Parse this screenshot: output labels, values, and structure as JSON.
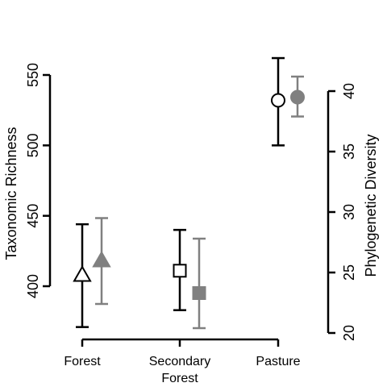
{
  "chart_data": {
    "type": "scatter",
    "categories": [
      "Forest",
      "Secondary Forest",
      "Pasture"
    ],
    "category_labels": [
      [
        "Forest"
      ],
      [
        "Secondary",
        "Forest"
      ],
      [
        "Pasture"
      ]
    ],
    "left_axis": {
      "label": "Taxonomic Richness",
      "ylim": [
        390,
        550
      ],
      "ticks": [
        400,
        450,
        500,
        550
      ]
    },
    "right_axis": {
      "label": "Phylogenetic Diversity",
      "ylim": [
        20,
        40
      ],
      "ticks": [
        20,
        25,
        30,
        35,
        40
      ]
    },
    "series": [
      {
        "axis": "left",
        "marker": "open",
        "color": "#000000",
        "shapes": [
          "triangle",
          "square",
          "circle"
        ],
        "values": [
          408,
          411,
          532
        ],
        "lower": [
          371,
          383,
          500
        ],
        "upper": [
          444,
          440,
          562
        ]
      },
      {
        "axis": "right",
        "marker": "filled",
        "color": "#808080",
        "shapes": [
          "triangle",
          "square",
          "circle"
        ],
        "values": [
          26.0,
          23.3,
          39.5
        ],
        "lower": [
          22.4,
          20.4,
          37.9
        ],
        "upper": [
          29.5,
          27.8,
          41.2
        ]
      }
    ],
    "grid": false,
    "legend": "none"
  }
}
